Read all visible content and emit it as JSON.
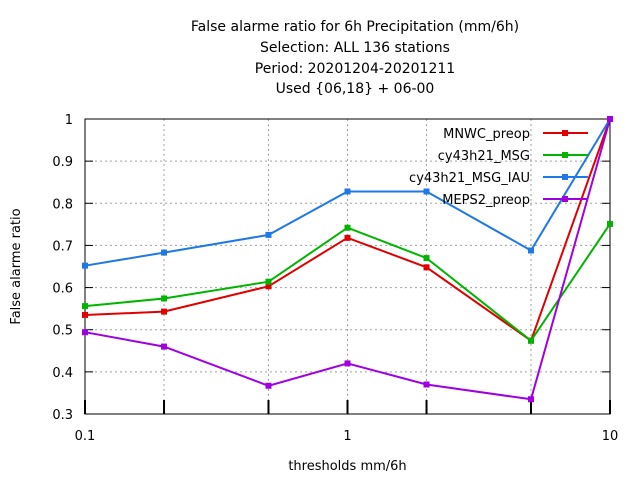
{
  "chart_data": {
    "type": "line",
    "title_lines": [
      "False alarme ratio  for 6h Precipitation (mm/6h)",
      "Selection: ALL    136 stations",
      "Period: 20201204-20201211",
      "Used {06,18} + 06-00"
    ],
    "xlabel": "thresholds mm/6h",
    "ylabel": "False alarme ratio",
    "x_scale": "log",
    "xlim": [
      0.1,
      10
    ],
    "ylim": [
      0.3,
      1
    ],
    "x_ticks": [
      0.1,
      1,
      10
    ],
    "x_tick_labels": [
      "0.1",
      "1",
      "10"
    ],
    "y_ticks": [
      0.3,
      0.4,
      0.5,
      0.6,
      0.7,
      0.8,
      0.9,
      1
    ],
    "y_tick_labels": [
      "0.3",
      "0.4",
      "0.5",
      "0.6",
      "0.7",
      "0.8",
      "0.9",
      "1"
    ],
    "grid": true,
    "legend_position": "top-right",
    "x": [
      0.1,
      0.2,
      0.5,
      1,
      2,
      5,
      10
    ],
    "series": [
      {
        "name": "MNWC_preop",
        "color": "#e00000",
        "values": [
          0.535,
          0.543,
          0.603,
          0.718,
          0.648,
          0.474,
          1.0
        ]
      },
      {
        "name": "cy43h21_MSG",
        "color": "#00b400",
        "values": [
          0.556,
          0.574,
          0.614,
          0.742,
          0.67,
          0.474,
          0.751
        ]
      },
      {
        "name": "cy43h21_MSG_IAU",
        "color": "#1e78e6",
        "values": [
          0.652,
          0.683,
          0.725,
          0.828,
          0.828,
          0.688,
          1.0
        ]
      },
      {
        "name": "MEPS2_preop",
        "color": "#a000e0",
        "values": [
          0.494,
          0.46,
          0.367,
          0.42,
          0.37,
          0.335,
          1.0
        ]
      }
    ]
  }
}
